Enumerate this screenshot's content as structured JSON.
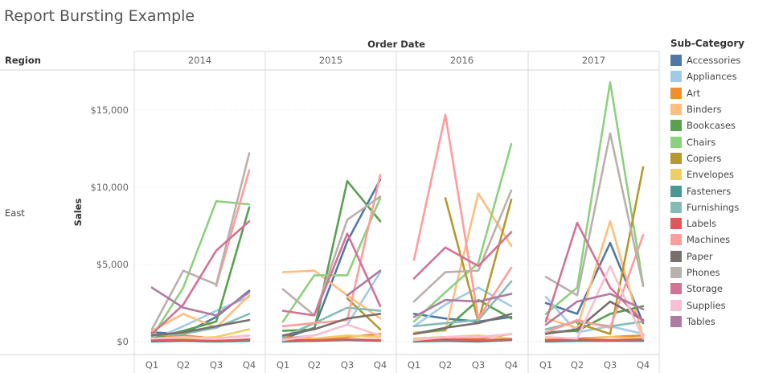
{
  "title": "Report Bursting Example",
  "legend_title": "Sub-Category",
  "chart_data": {
    "type": "line",
    "title": "Report Bursting Example",
    "column_header": "Order Date",
    "row_header": "Region",
    "row_label": "East",
    "ylabel": "Sales",
    "years": [
      "2014",
      "2015",
      "2016",
      "2017"
    ],
    "quarters": [
      "Q1",
      "Q2",
      "Q3",
      "Q4"
    ],
    "yticks": [
      "$0",
      "$5,000",
      "$10,000",
      "$15,000"
    ],
    "ytick_values": [
      0,
      5000,
      10000,
      15000
    ],
    "ylim": [
      -500,
      17500
    ],
    "grid": true,
    "legend_position": "right",
    "series": [
      {
        "name": "Accessories",
        "color": "#4e79a7",
        "values": [
          [
            600,
            500,
            1600,
            3300
          ],
          [
            200,
            900,
            6500,
            10500
          ],
          [
            1800,
            1500,
            1300,
            1600
          ],
          [
            2500,
            1800,
            6400,
            1200
          ]
        ]
      },
      {
        "name": "Appliances",
        "color": "#a0cbe8",
        "values": [
          [
            100,
            1000,
            2000,
            2900
          ],
          [
            200,
            400,
            1100,
            4500
          ],
          [
            1000,
            2400,
            3500,
            2300
          ],
          [
            2900,
            600,
            1000,
            500
          ]
        ]
      },
      {
        "name": "Art",
        "color": "#f28e2b",
        "values": [
          [
            200,
            400,
            200,
            400
          ],
          [
            300,
            200,
            300,
            500
          ],
          [
            200,
            300,
            200,
            500
          ],
          [
            200,
            200,
            300,
            400
          ]
        ]
      },
      {
        "name": "Binders",
        "color": "#ffbe7d",
        "values": [
          [
            700,
            1800,
            900,
            3000
          ],
          [
            4500,
            4600,
            3000,
            1500
          ],
          [
            600,
            700,
            9600,
            6200
          ],
          [
            1500,
            900,
            7800,
            300
          ]
        ]
      },
      {
        "name": "Bookcases",
        "color": "#59a14f",
        "values": [
          [
            200,
            700,
            1300,
            8700
          ],
          [
            700,
            800,
            10400,
            7800
          ],
          [
            500,
            800,
            2700,
            1500
          ],
          [
            600,
            700,
            1800,
            2300
          ]
        ]
      },
      {
        "name": "Chairs",
        "color": "#8cd17d",
        "values": [
          [
            300,
            3500,
            9100,
            8900
          ],
          [
            1300,
            4300,
            4300,
            9300
          ],
          [
            1300,
            3200,
            5100,
            12800
          ],
          [
            1800,
            3500,
            16800,
            3700
          ]
        ]
      },
      {
        "name": "Copiers",
        "color": "#b6992d",
        "values": [
          [
            null,
            null,
            null,
            null
          ],
          [
            null,
            null,
            2800,
            800
          ],
          [
            null,
            9300,
            1300,
            9200
          ],
          [
            null,
            1200,
            500,
            11300
          ]
        ]
      },
      {
        "name": "Envelopes",
        "color": "#f1ce63",
        "values": [
          [
            100,
            200,
            300,
            800
          ],
          [
            100,
            200,
            400,
            300
          ],
          [
            200,
            300,
            400,
            200
          ],
          [
            200,
            100,
            300,
            200
          ]
        ]
      },
      {
        "name": "Fasteners",
        "color": "#499894",
        "values": [
          [
            0,
            50,
            0,
            50
          ],
          [
            0,
            50,
            100,
            50
          ],
          [
            0,
            50,
            0,
            100
          ],
          [
            0,
            50,
            50,
            50
          ]
        ]
      },
      {
        "name": "Furnishings",
        "color": "#86bcb6",
        "values": [
          [
            400,
            500,
            900,
            1800
          ],
          [
            300,
            1200,
            2200,
            2000
          ],
          [
            1000,
            1200,
            1400,
            3900
          ],
          [
            800,
            1300,
            1000,
            1300
          ]
        ]
      },
      {
        "name": "Labels",
        "color": "#e15759",
        "values": [
          [
            100,
            100,
            50,
            150
          ],
          [
            100,
            100,
            150,
            100
          ],
          [
            50,
            150,
            100,
            150
          ],
          [
            100,
            150,
            100,
            150
          ]
        ]
      },
      {
        "name": "Machines",
        "color": "#ff9d9a",
        "values": [
          [
            null,
            null,
            3600,
            11100
          ],
          [
            1000,
            1200,
            1400,
            10800
          ],
          [
            5300,
            14700,
            1500,
            4800
          ],
          [
            600,
            1400,
            900,
            6900
          ]
        ]
      },
      {
        "name": "Paper",
        "color": "#79706e",
        "values": [
          [
            400,
            600,
            1000,
            1400
          ],
          [
            400,
            800,
            1500,
            1800
          ],
          [
            500,
            900,
            1200,
            1800
          ],
          [
            500,
            800,
            2600,
            1400
          ]
        ]
      },
      {
        "name": "Phones",
        "color": "#bab0ac",
        "values": [
          [
            800,
            4600,
            3700,
            12200
          ],
          [
            3400,
            1700,
            7900,
            9400
          ],
          [
            2600,
            4500,
            4600,
            9800
          ],
          [
            4200,
            3000,
            13500,
            3600
          ]
        ]
      },
      {
        "name": "Storage",
        "color": "#d37295",
        "values": [
          [
            500,
            2400,
            5900,
            7800
          ],
          [
            2000,
            1700,
            7000,
            2300
          ],
          [
            4100,
            6100,
            4900,
            7100
          ],
          [
            1300,
            7700,
            3500,
            1300
          ]
        ]
      },
      {
        "name": "Supplies",
        "color": "#fabfd2",
        "values": [
          [
            200,
            300,
            200,
            400
          ],
          [
            100,
            400,
            1100,
            400
          ],
          [
            100,
            300,
            300,
            500
          ],
          [
            300,
            200,
            4900,
            200
          ]
        ]
      },
      {
        "name": "Tables",
        "color": "#b07aa1",
        "values": [
          [
            3500,
            2200,
            1700,
            3200
          ],
          [
            null,
            null,
            3000,
            4600
          ],
          [
            1600,
            2700,
            2600,
            3100
          ],
          [
            1100,
            2600,
            3100,
            2100
          ]
        ]
      }
    ]
  }
}
